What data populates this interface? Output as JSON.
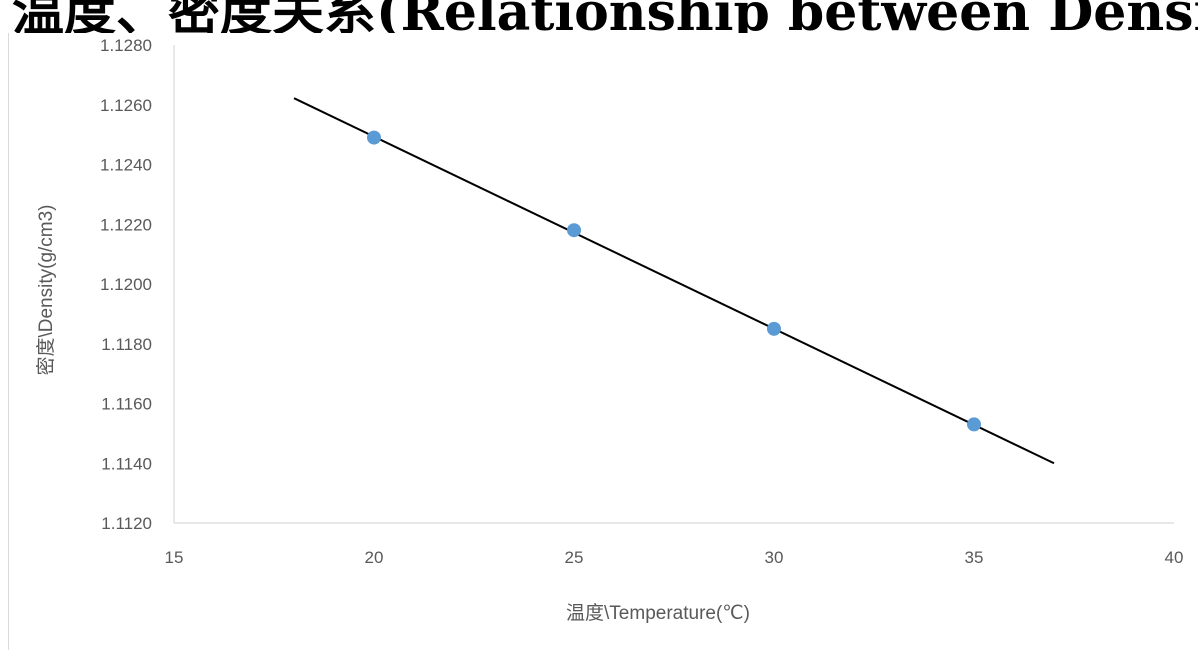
{
  "title": "温度、密度关系(Relationship between Density and Temperature)",
  "chart_data": {
    "type": "scatter",
    "title": "温度、密度关系(Relationship between Density and Temperature)",
    "xlabel": "温度\\Temperature(℃)",
    "ylabel": "密度\\Density(g/cm3)",
    "xlim": [
      15,
      40
    ],
    "ylim": [
      1.112,
      1.128
    ],
    "x_ticks": [
      "15",
      "20",
      "25",
      "30",
      "35",
      "40"
    ],
    "y_ticks": [
      "1.1120",
      "1.1140",
      "1.1160",
      "1.1180",
      "1.1200",
      "1.1220",
      "1.1240",
      "1.1260",
      "1.1280"
    ],
    "grid": false,
    "legend": "none",
    "series": [
      {
        "x": [
          20,
          25,
          30,
          35
        ],
        "y": [
          1.1249,
          1.1218,
          1.1185,
          1.1153
        ],
        "color": "#5b9bd5"
      }
    ],
    "trendline": {
      "type": "linear",
      "x": [
        18,
        37
      ],
      "y": [
        1.12622,
        1.114
      ],
      "color": "#000000"
    }
  }
}
